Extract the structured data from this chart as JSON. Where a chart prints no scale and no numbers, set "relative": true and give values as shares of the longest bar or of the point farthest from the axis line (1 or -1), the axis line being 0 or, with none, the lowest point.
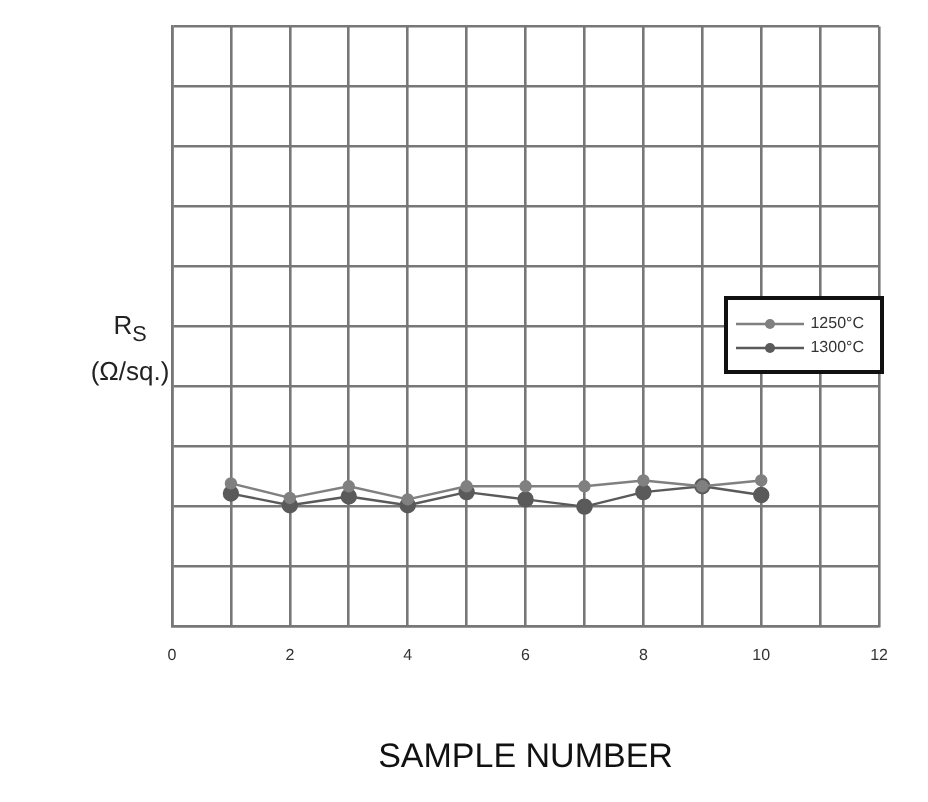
{
  "chart_data": {
    "type": "line",
    "xlabel": "SAMPLE NUMBER",
    "ylabel": "R$_{S}$ (Ω/sq.)",
    "relative": true,
    "x": [
      1,
      2,
      3,
      4,
      5,
      6,
      7,
      8,
      9,
      10
    ],
    "xlim": [
      0,
      12
    ],
    "xticks": [
      0,
      {
        "value": 1,
        "label": null
      },
      2,
      {
        "value": 3,
        "label": null
      },
      4,
      {
        "value": 5,
        "label": null
      },
      6,
      {
        "value": 7,
        "label": null
      },
      8,
      {
        "value": 9,
        "label": null
      },
      10,
      {
        "value": 11,
        "label": null
      },
      12
    ],
    "series": [
      {
        "name": "1250°C",
        "color": "#808080",
        "values": [
          0.98,
          0.88,
          0.96,
          0.87,
          0.96,
          0.96,
          0.96,
          1,
          0.96,
          1
        ]
      },
      {
        "name": "1300°C",
        "color": "#5a5a5a",
        "values": [
          0.91,
          0.83,
          0.89,
          0.83,
          0.92,
          0.87,
          0.82,
          0.92,
          0.96,
          0.9
        ]
      }
    ],
    "grid": true,
    "legend": "right",
    "marker": "circle",
    "line_style": "solid"
  }
}
